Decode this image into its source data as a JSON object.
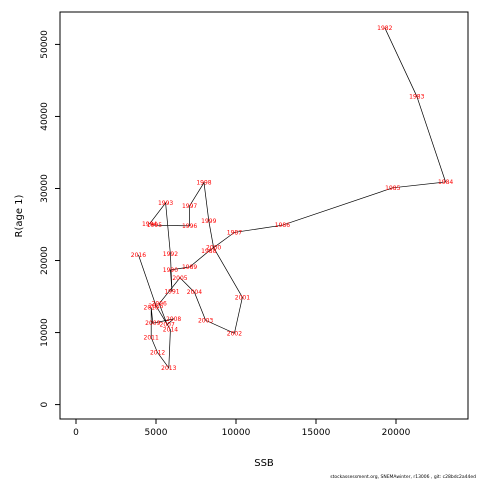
{
  "chart_data": {
    "type": "line",
    "title": "",
    "xlabel": "SSB",
    "ylabel": "R(age 1)",
    "xlim": [
      -1000,
      24500
    ],
    "ylim": [
      -2000,
      54500
    ],
    "xticks": [
      0,
      5000,
      10000,
      15000,
      20000
    ],
    "yticks": [
      0,
      10000,
      20000,
      30000,
      40000,
      50000
    ],
    "grid": false,
    "line_color": "#000000",
    "label_color": "#ff0000",
    "points": [
      {
        "year": "1982",
        "x": 19300,
        "y": 52300
      },
      {
        "year": "1983",
        "x": 21300,
        "y": 42800
      },
      {
        "year": "1984",
        "x": 23100,
        "y": 30900
      },
      {
        "year": "1985",
        "x": 19800,
        "y": 30100
      },
      {
        "year": "1986",
        "x": 12900,
        "y": 24900
      },
      {
        "year": "1987",
        "x": 9900,
        "y": 23900
      },
      {
        "year": "1988",
        "x": 8300,
        "y": 21300
      },
      {
        "year": "1989",
        "x": 7100,
        "y": 19100
      },
      {
        "year": "1990",
        "x": 5900,
        "y": 18700
      },
      {
        "year": "1991",
        "x": 6000,
        "y": 15700
      },
      {
        "year": "1992",
        "x": 5900,
        "y": 20900
      },
      {
        "year": "1993",
        "x": 5600,
        "y": 28000
      },
      {
        "year": "1994",
        "x": 4600,
        "y": 25100
      },
      {
        "year": "1995",
        "x": 4900,
        "y": 24900
      },
      {
        "year": "1996",
        "x": 7100,
        "y": 24800
      },
      {
        "year": "1997",
        "x": 7100,
        "y": 27600
      },
      {
        "year": "1998",
        "x": 8000,
        "y": 30800
      },
      {
        "year": "1999",
        "x": 8300,
        "y": 25500
      },
      {
        "year": "2000",
        "x": 8600,
        "y": 21800
      },
      {
        "year": "2001",
        "x": 10400,
        "y": 14900
      },
      {
        "year": "2002",
        "x": 9900,
        "y": 9900
      },
      {
        "year": "2003",
        "x": 8100,
        "y": 11700
      },
      {
        "year": "2004",
        "x": 7400,
        "y": 15600
      },
      {
        "year": "2005",
        "x": 6500,
        "y": 17600
      },
      {
        "year": "2006",
        "x": 5200,
        "y": 14000
      },
      {
        "year": "2007",
        "x": 5700,
        "y": 11100
      },
      {
        "year": "2008",
        "x": 6100,
        "y": 11900
      },
      {
        "year": "2009",
        "x": 4800,
        "y": 11300
      },
      {
        "year": "2010",
        "x": 4700,
        "y": 13500
      },
      {
        "year": "2011",
        "x": 4700,
        "y": 9300
      },
      {
        "year": "2012",
        "x": 5100,
        "y": 7200
      },
      {
        "year": "2013",
        "x": 5800,
        "y": 5100
      },
      {
        "year": "2014",
        "x": 5900,
        "y": 10400
      },
      {
        "year": "2015",
        "x": 5000,
        "y": 13700
      },
      {
        "year": "2016",
        "x": 3900,
        "y": 20800
      }
    ]
  },
  "footer": {
    "credit": "stockassessment.org, SNEMAwinter, r13006 ,  git: c28bdc2a44ed"
  }
}
